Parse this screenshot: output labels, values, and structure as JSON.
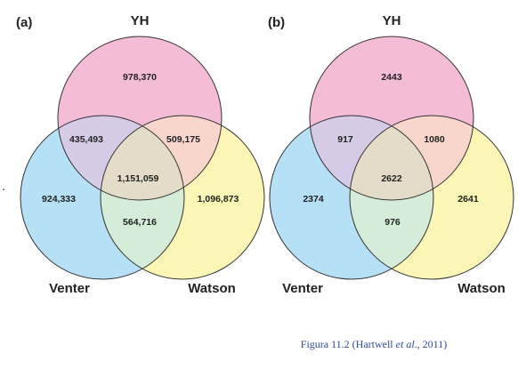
{
  "colors": {
    "yh": "#f4bcd6",
    "venter": "#b6e0f6",
    "watson": "#fbf6b5",
    "outline": "#333333",
    "caption": "#2d4a9a"
  },
  "panels": [
    {
      "label": "(a)",
      "sets": {
        "yh": "YH",
        "venter": "Venter",
        "watson": "Watson"
      },
      "regions": {
        "yh_only": "978,370",
        "yh_venter": "435,493",
        "yh_watson": "509,175",
        "all": "1,151,059",
        "venter_only": "924,333",
        "watson_only": "1,096,873",
        "venter_watson": "564,716"
      }
    },
    {
      "label": "(b)",
      "sets": {
        "yh": "YH",
        "venter": "Venter",
        "watson": "Watson"
      },
      "regions": {
        "yh_only": "2443",
        "yh_venter": "917",
        "yh_watson": "1080",
        "all": "2622",
        "venter_only": "2374",
        "watson_only": "2641",
        "venter_watson": "976"
      }
    }
  ],
  "caption": {
    "prefix": "Figura 11.2 (Hartwell ",
    "etal": "et al",
    "suffix": "., 2011)"
  },
  "stray_mark": "."
}
